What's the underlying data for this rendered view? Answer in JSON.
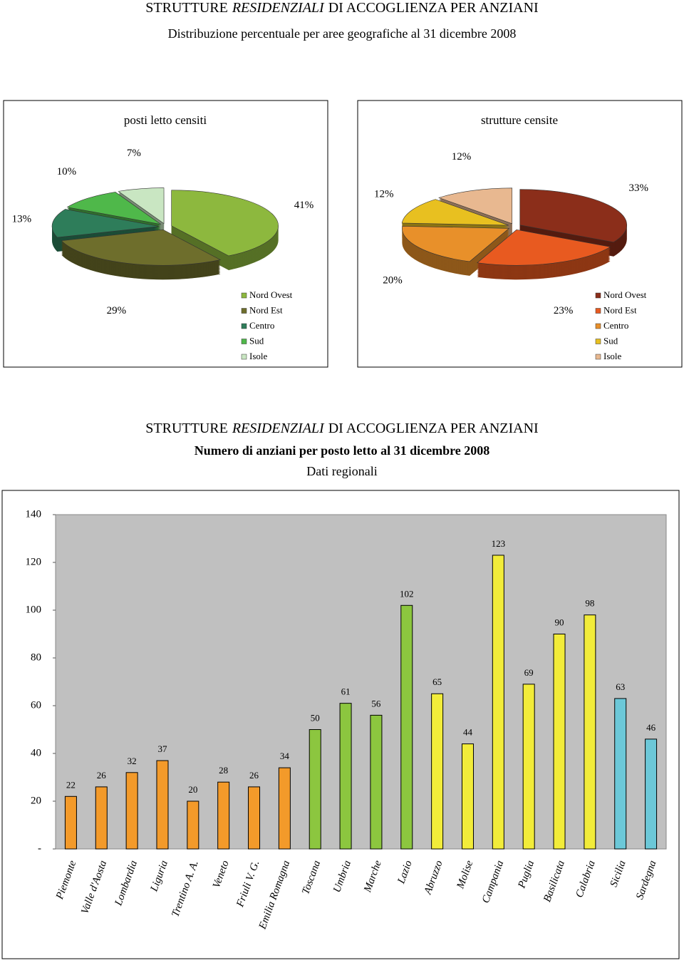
{
  "header": {
    "title_parts": [
      "STRUTTURE",
      "RESIDENZIALI",
      "DI ACCOGLIENZA PER ANZIANI"
    ],
    "subtitle": "Distribuzione percentuale per aree geografiche al 31 dicembre 2008"
  },
  "chart_data": [
    {
      "type": "pie",
      "title": "posti letto censiti",
      "categories": [
        "Nord Ovest",
        "Nord Est",
        "Centro",
        "Sud",
        "Isole"
      ],
      "values": [
        41,
        29,
        13,
        10,
        7
      ],
      "value_labels": [
        "41%",
        "29%",
        "13%",
        "10%",
        "7%"
      ],
      "colors": [
        "#8db83e",
        "#6e6e2c",
        "#2e7d5a",
        "#4fb84a",
        "#c9e6c2"
      ]
    },
    {
      "type": "pie",
      "title": "strutture censite",
      "categories": [
        "Nord Ovest",
        "Nord Est",
        "Centro",
        "Sud",
        "Isole"
      ],
      "values": [
        33,
        23,
        20,
        12,
        12
      ],
      "value_labels": [
        "33%",
        "23%",
        "20%",
        "12%",
        "12%"
      ],
      "colors": [
        "#8b2e1a",
        "#e85a20",
        "#e8902a",
        "#e8c020",
        "#e8b890"
      ]
    },
    {
      "type": "bar",
      "title_parts": [
        "STRUTTURE",
        "RESIDENZIALI",
        "DI ACCOGLIENZA PER ANZIANI"
      ],
      "subtitle": "Numero di anziani  per  posto letto al 31 dicembre 2008",
      "note": "Dati regionali",
      "categories": [
        "Piemonte",
        "Valle d'Aosta",
        "Lombardia",
        "Liguria",
        "Trentino A. A.",
        "Veneto",
        "Friuli V. G.",
        "Emilia Romagna",
        "Toscana",
        "Umbria",
        "Marche",
        "Lazio",
        "Abruzzo",
        "Molise",
        "Campania",
        "Puglia",
        "Basilicata",
        "Calabria",
        "Sicilia",
        "Sardegna"
      ],
      "values": [
        22,
        26,
        32,
        37,
        20,
        28,
        26,
        34,
        50,
        61,
        56,
        102,
        65,
        44,
        123,
        69,
        90,
        98,
        63,
        46
      ],
      "colors": [
        "#f39a2a",
        "#f39a2a",
        "#f39a2a",
        "#f39a2a",
        "#f39a2a",
        "#f39a2a",
        "#f39a2a",
        "#f39a2a",
        "#8cc63f",
        "#8cc63f",
        "#8cc63f",
        "#8cc63f",
        "#f2ec3a",
        "#f2ec3a",
        "#f2ec3a",
        "#f2ec3a",
        "#f2ec3a",
        "#f2ec3a",
        "#6cc8d8",
        "#6cc8d8"
      ],
      "ylim": [
        0,
        140
      ],
      "yticks": [
        {
          "value": 0,
          "label": "-"
        },
        20,
        40,
        60,
        80,
        100,
        120,
        140
      ],
      "grid": false
    }
  ]
}
